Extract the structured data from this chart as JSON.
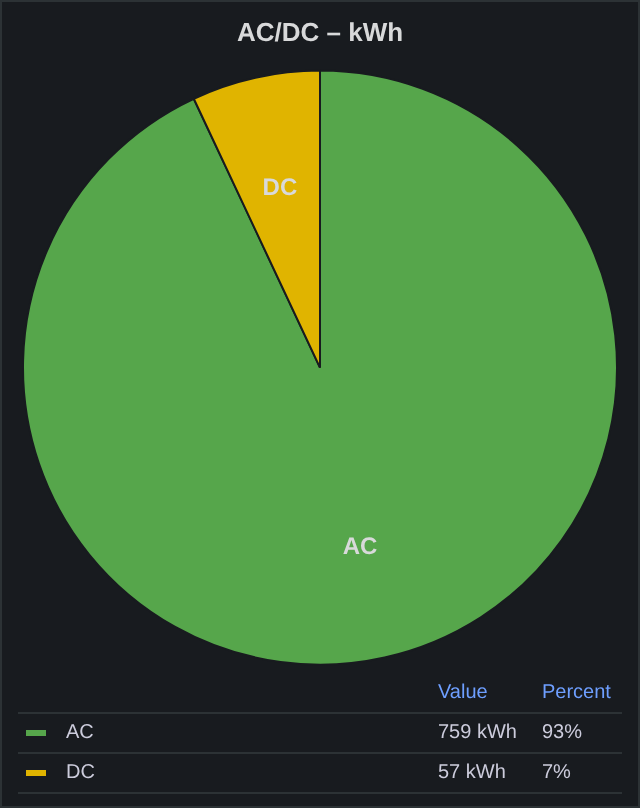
{
  "chart_data": {
    "type": "pie",
    "title": "AC/DC – kWh",
    "categories": [
      "AC",
      "DC"
    ],
    "values": [
      759,
      57
    ],
    "colors": [
      "#56a64b",
      "#e0b400"
    ],
    "value_labels": [
      "759 kWh",
      "57 kWh"
    ],
    "annotations": [
      "Value",
      "Percent",
      "93%",
      "7%"
    ],
    "legend": "bottom"
  }
}
